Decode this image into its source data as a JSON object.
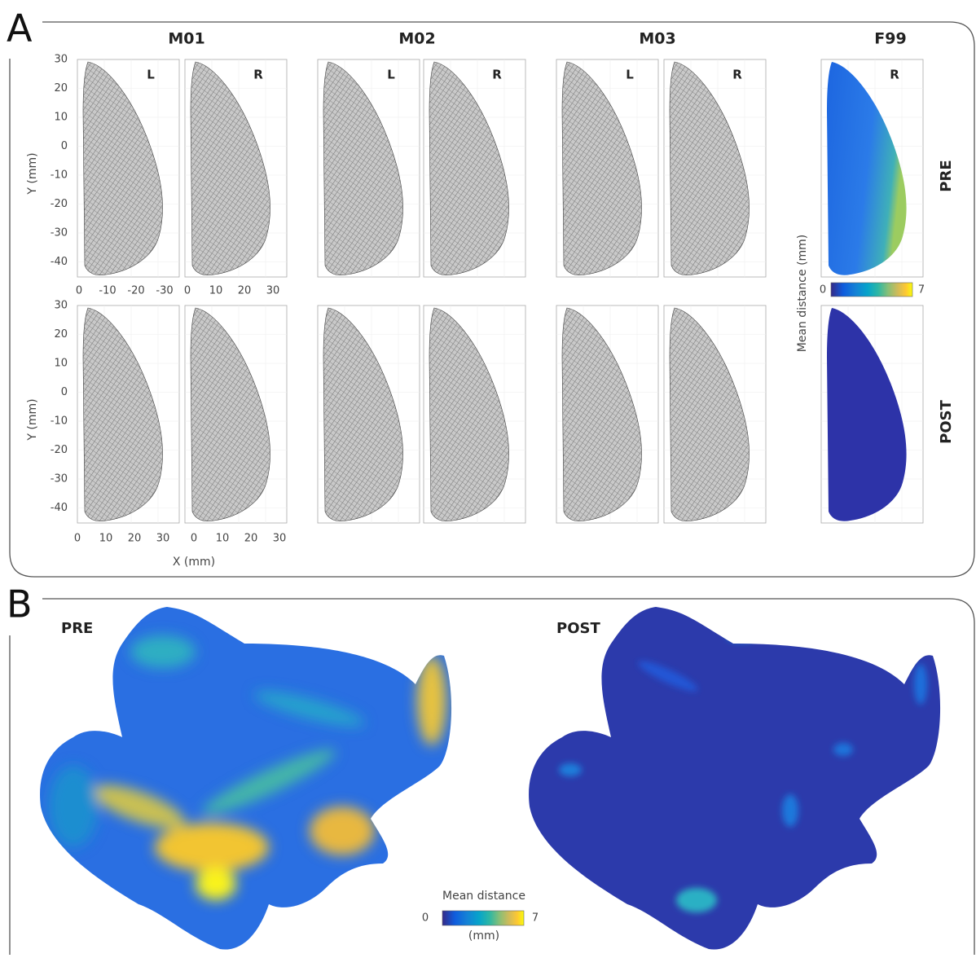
{
  "panel_a": {
    "label": "A",
    "columns": [
      {
        "title": "M01",
        "sides": [
          "L",
          "R"
        ]
      },
      {
        "title": "M02",
        "sides": [
          "L",
          "R"
        ]
      },
      {
        "title": "M03",
        "sides": [
          "L",
          "R"
        ]
      },
      {
        "title": "F99",
        "sides": [
          "R"
        ]
      }
    ],
    "y_axis_label": "Y (mm)",
    "x_axis_label": "X (mm)",
    "y_ticks": [
      30,
      20,
      10,
      0,
      -10,
      -20,
      -30,
      -40
    ],
    "x_ticks_top_left": [
      0,
      -10,
      -20,
      -30
    ],
    "x_ticks_top_right": [
      0,
      10,
      20,
      30
    ],
    "x_ticks_bottom": [
      0,
      10,
      20,
      30
    ],
    "row_labels": [
      "PRE",
      "POST"
    ],
    "colorbar": {
      "label": "Mean distance (mm)",
      "min": 0,
      "max": 7
    }
  },
  "panel_b": {
    "label": "B",
    "titles": [
      "PRE",
      "POST"
    ],
    "colorbar": {
      "label": "Mean distance",
      "unit": "(mm)",
      "min": 0,
      "max": 7
    }
  }
}
